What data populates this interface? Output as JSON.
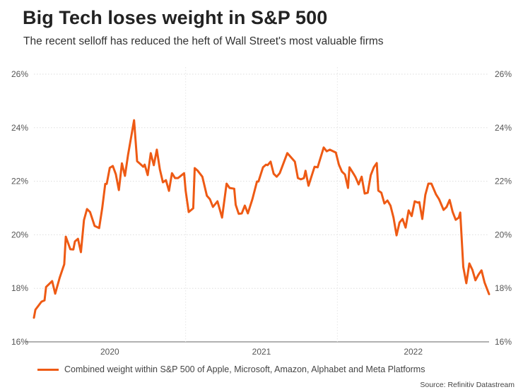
{
  "title": "Big Tech loses weight in S&P 500",
  "subtitle": "The recent selloff has reduced the heft of Wall Street's most valuable firms",
  "source": "Source: Refinitiv Datastream",
  "chart_data": {
    "type": "line",
    "title": "Big Tech loses weight in S&P 500",
    "subtitle": "The recent selloff has reduced the heft of Wall Street's most valuable firms",
    "xlabel": "",
    "ylabel": "",
    "xlim": [
      2020.0,
      2023.0
    ],
    "ylim": [
      16,
      26
    ],
    "x_ticks": [
      {
        "value": 2020.5,
        "label": "2020"
      },
      {
        "value": 2021.5,
        "label": "2021"
      },
      {
        "value": 2022.5,
        "label": "2022"
      }
    ],
    "x_gridlines": [
      2021.0,
      2022.0
    ],
    "y_ticks": [
      16,
      18,
      20,
      22,
      24,
      26
    ],
    "y_tick_labels": [
      "16%",
      "18%",
      "20%",
      "22%",
      "24%",
      "26%"
    ],
    "grid": true,
    "y_axis_both_sides": true,
    "legend_position": "bottom-left",
    "line_color": "#ee5a14",
    "series": [
      {
        "name": "Combined weight within S&P 500 of Apple, Microsoft, Amazon, Alphabet and Meta Platforms",
        "x": [
          2020.0,
          2020.01,
          2020.05,
          2020.07,
          2020.08,
          2020.12,
          2020.14,
          2020.17,
          2020.2,
          2020.21,
          2020.24,
          2020.26,
          2020.27,
          2020.29,
          2020.31,
          2020.33,
          2020.35,
          2020.37,
          2020.4,
          2020.43,
          2020.45,
          2020.47,
          2020.48,
          2020.5,
          2020.52,
          2020.54,
          2020.56,
          2020.58,
          2020.6,
          2020.62,
          2020.66,
          2020.68,
          2020.7,
          2020.72,
          2020.73,
          2020.75,
          2020.77,
          2020.79,
          2020.81,
          2020.83,
          2020.85,
          2020.87,
          2020.89,
          2020.91,
          2020.93,
          2020.95,
          2020.99,
          2021.0,
          2021.02,
          2021.05,
          2021.06,
          2021.08,
          2021.11,
          2021.14,
          2021.16,
          2021.18,
          2021.21,
          2021.24,
          2021.27,
          2021.29,
          2021.32,
          2021.33,
          2021.35,
          2021.37,
          2021.39,
          2021.41,
          2021.44,
          2021.47,
          2021.48,
          2021.51,
          2021.53,
          2021.54,
          2021.56,
          2021.58,
          2021.6,
          2021.62,
          2021.67,
          2021.72,
          2021.74,
          2021.76,
          2021.78,
          2021.79,
          2021.81,
          2021.85,
          2021.87,
          2021.91,
          2021.93,
          2021.95,
          2021.99,
          2022.01,
          2022.03,
          2022.05,
          2022.07,
          2022.08,
          2022.11,
          2022.12,
          2022.14,
          2022.16,
          2022.18,
          2022.2,
          2022.22,
          2022.24,
          2022.26,
          2022.27,
          2022.29,
          2022.31,
          2022.33,
          2022.35,
          2022.37,
          2022.39,
          2022.41,
          2022.43,
          2022.45,
          2022.47,
          2022.49,
          2022.51,
          2022.53,
          2022.54,
          2022.56,
          2022.58,
          2022.6,
          2022.62,
          2022.65,
          2022.67,
          2022.68,
          2022.7,
          2022.72,
          2022.74,
          2022.76,
          2022.78,
          2022.8,
          2022.81,
          2022.83,
          2022.85,
          2022.87,
          2022.89,
          2022.91,
          2022.93,
          2022.95,
          2022.97,
          2023.0
        ],
        "values": [
          16.9,
          17.2,
          17.5,
          17.55,
          18.05,
          18.27,
          17.8,
          18.4,
          18.9,
          19.93,
          19.46,
          19.45,
          19.75,
          19.85,
          19.35,
          20.55,
          20.96,
          20.85,
          20.33,
          20.25,
          20.99,
          21.9,
          21.9,
          22.5,
          22.57,
          22.26,
          21.67,
          22.67,
          22.2,
          22.97,
          24.28,
          22.75,
          22.65,
          22.54,
          22.62,
          22.23,
          23.05,
          22.6,
          23.18,
          22.44,
          21.96,
          22.04,
          21.64,
          22.3,
          22.12,
          22.12,
          22.3,
          21.64,
          20.85,
          20.99,
          22.49,
          22.39,
          22.17,
          21.46,
          21.33,
          21.04,
          21.25,
          20.64,
          21.91,
          21.75,
          21.72,
          21.12,
          20.78,
          20.8,
          21.09,
          20.8,
          21.33,
          21.99,
          21.99,
          22.52,
          22.62,
          22.6,
          22.73,
          22.28,
          22.17,
          22.3,
          23.05,
          22.73,
          22.12,
          22.07,
          22.12,
          22.39,
          21.83,
          22.54,
          22.52,
          23.26,
          23.12,
          23.18,
          23.07,
          22.62,
          22.36,
          22.25,
          21.75,
          22.52,
          22.25,
          22.15,
          21.88,
          22.17,
          21.54,
          21.57,
          22.23,
          22.52,
          22.68,
          21.65,
          21.57,
          21.17,
          21.28,
          21.09,
          20.64,
          19.98,
          20.46,
          20.59,
          20.27,
          20.91,
          20.7,
          21.25,
          21.2,
          21.22,
          20.59,
          21.49,
          21.91,
          21.91,
          21.51,
          21.33,
          21.2,
          20.93,
          21.04,
          21.3,
          20.85,
          20.56,
          20.64,
          20.83,
          18.8,
          18.19,
          18.93,
          18.69,
          18.3,
          18.51,
          18.67,
          18.22,
          17.78
        ]
      }
    ]
  }
}
